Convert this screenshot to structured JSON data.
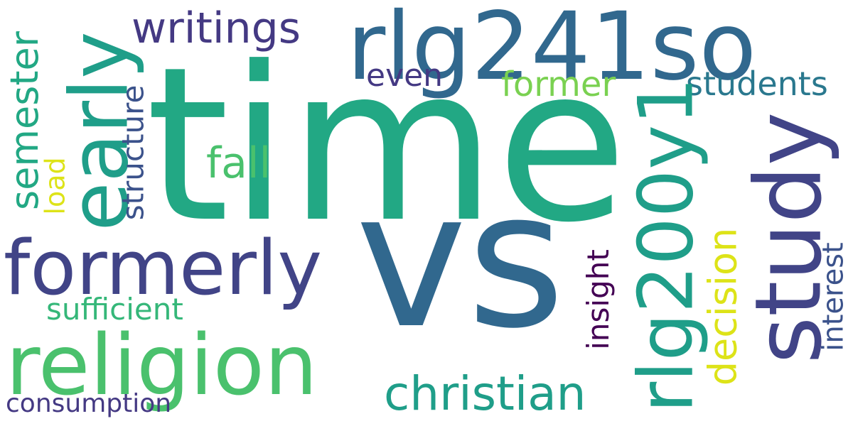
{
  "words": {
    "time": {
      "text": "time",
      "color": "#22a884"
    },
    "vs": {
      "text": "vs",
      "color": "#31688e"
    },
    "rlg241so": {
      "text": "rlg241so",
      "color": "#31688e"
    },
    "religion": {
      "text": "religion",
      "color": "#4ac16d"
    },
    "formerly": {
      "text": "formerly",
      "color": "#414487"
    },
    "early": {
      "text": "early",
      "color": "#1f9e89"
    },
    "study": {
      "text": "study",
      "color": "#414487"
    },
    "rlg200y1": {
      "text": "rlg200y1",
      "color": "#1f9e89"
    },
    "christian": {
      "text": "christian",
      "color": "#1f9e89"
    },
    "writings": {
      "text": "writings",
      "color": "#443983"
    },
    "fall": {
      "text": "fall",
      "color": "#4ac16d"
    },
    "former": {
      "text": "former",
      "color": "#7ad151"
    },
    "students": {
      "text": "students",
      "color": "#2a788e"
    },
    "even": {
      "text": "even",
      "color": "#443983"
    },
    "semester": {
      "text": "semester",
      "color": "#22a884"
    },
    "structure": {
      "text": "structure",
      "color": "#3b528b"
    },
    "load": {
      "text": "load",
      "color": "#dde318"
    },
    "sufficient": {
      "text": "sufficient",
      "color": "#35b779"
    },
    "consumption": {
      "text": "consumption",
      "color": "#443983"
    },
    "insight": {
      "text": "insight",
      "color": "#440154"
    },
    "decision": {
      "text": "decision",
      "color": "#dde318"
    },
    "interest": {
      "text": "interest",
      "color": "#3b528b"
    }
  }
}
